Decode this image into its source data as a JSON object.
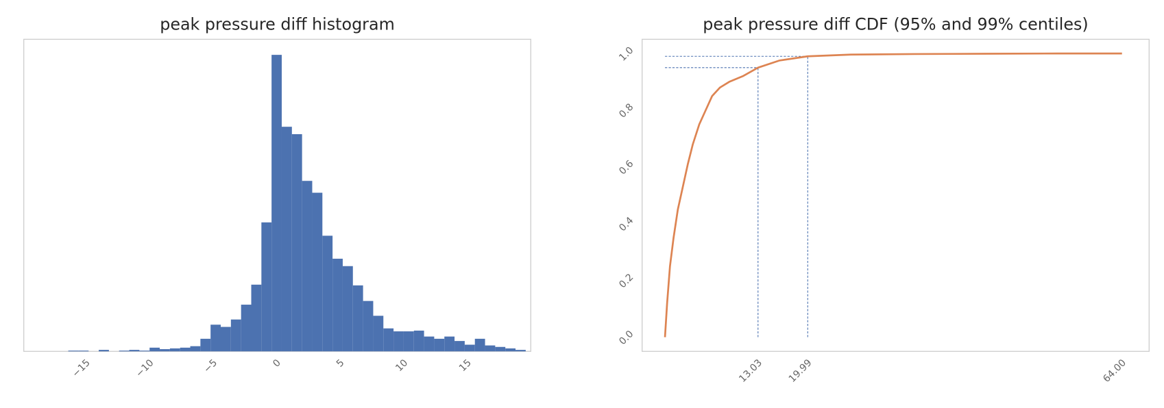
{
  "chart_data": [
    {
      "type": "histogram",
      "title": "peak pressure diff histogram",
      "color": "#4c72b0",
      "bins": [
        -16.4,
        -15.6,
        -14.8,
        -14,
        -13.2,
        -12.4,
        -11.6,
        -10.8,
        -10,
        -9.2,
        -8.4,
        -7.6,
        -6.8,
        -6,
        -5.2,
        -4.4,
        -3.6,
        -2.8,
        -2,
        -1.2,
        -0.4,
        0.4,
        1.2,
        2,
        2.8,
        3.6,
        4.4,
        5.2,
        6,
        6.8,
        7.6,
        8.4,
        9.2,
        10,
        10.8,
        11.6,
        12.4,
        13.2,
        14,
        14.8,
        15.6,
        16.4,
        17.2,
        18,
        18.8,
        19.6
      ],
      "counts": [
        1,
        1,
        0,
        2,
        0,
        1,
        2,
        1,
        5,
        3,
        4,
        5,
        7,
        17,
        36,
        33,
        43,
        63,
        90,
        174,
        400,
        303,
        293,
        230,
        214,
        156,
        125,
        115,
        89,
        68,
        48,
        31,
        27,
        27,
        28,
        20,
        17,
        20,
        14,
        9,
        17,
        8,
        6,
        4,
        2
      ],
      "xlim": [
        -19.9,
        20.0
      ],
      "ylim": [
        0,
        421
      ],
      "xticks": [
        {
          "value": -15,
          "label": "−15"
        },
        {
          "value": -10,
          "label": "−10"
        },
        {
          "value": -5,
          "label": "−5"
        },
        0,
        5,
        10,
        15
      ]
    },
    {
      "type": "line",
      "title": "peak pressure diff CDF (95% and 99% centiles)",
      "color": "#dd8452",
      "centile_color": "#4c72b0",
      "x": [
        0,
        0.3,
        0.7,
        1.2,
        1.8,
        2.5,
        3.2,
        3.9,
        4.8,
        5.7,
        6.6,
        7.7,
        9,
        10.9,
        13.03,
        16,
        19.99,
        26,
        35,
        45,
        55,
        64
      ],
      "values": [
        0,
        0.12,
        0.25,
        0.35,
        0.45,
        0.53,
        0.61,
        0.68,
        0.75,
        0.8,
        0.85,
        0.88,
        0.9,
        0.92,
        0.95,
        0.975,
        0.99,
        0.996,
        0.998,
        0.999,
        1.0,
        1.0
      ],
      "centiles": [
        {
          "x": 13.03,
          "y": 0.95
        },
        {
          "x": 19.99,
          "y": 0.99
        }
      ],
      "xlim": [
        -3.2,
        67.8
      ],
      "ylim": [
        -0.05,
        1.05
      ],
      "xticks": [
        {
          "value": 13.03,
          "label": "13.03"
        },
        {
          "value": 19.99,
          "label": "19.99"
        },
        {
          "value": 64,
          "label": "64.00"
        }
      ],
      "yticks": [
        {
          "value": 0,
          "label": "0.0"
        },
        0.2,
        0.4,
        0.6,
        0.8,
        {
          "value": 1,
          "label": "1.0"
        }
      ]
    }
  ]
}
